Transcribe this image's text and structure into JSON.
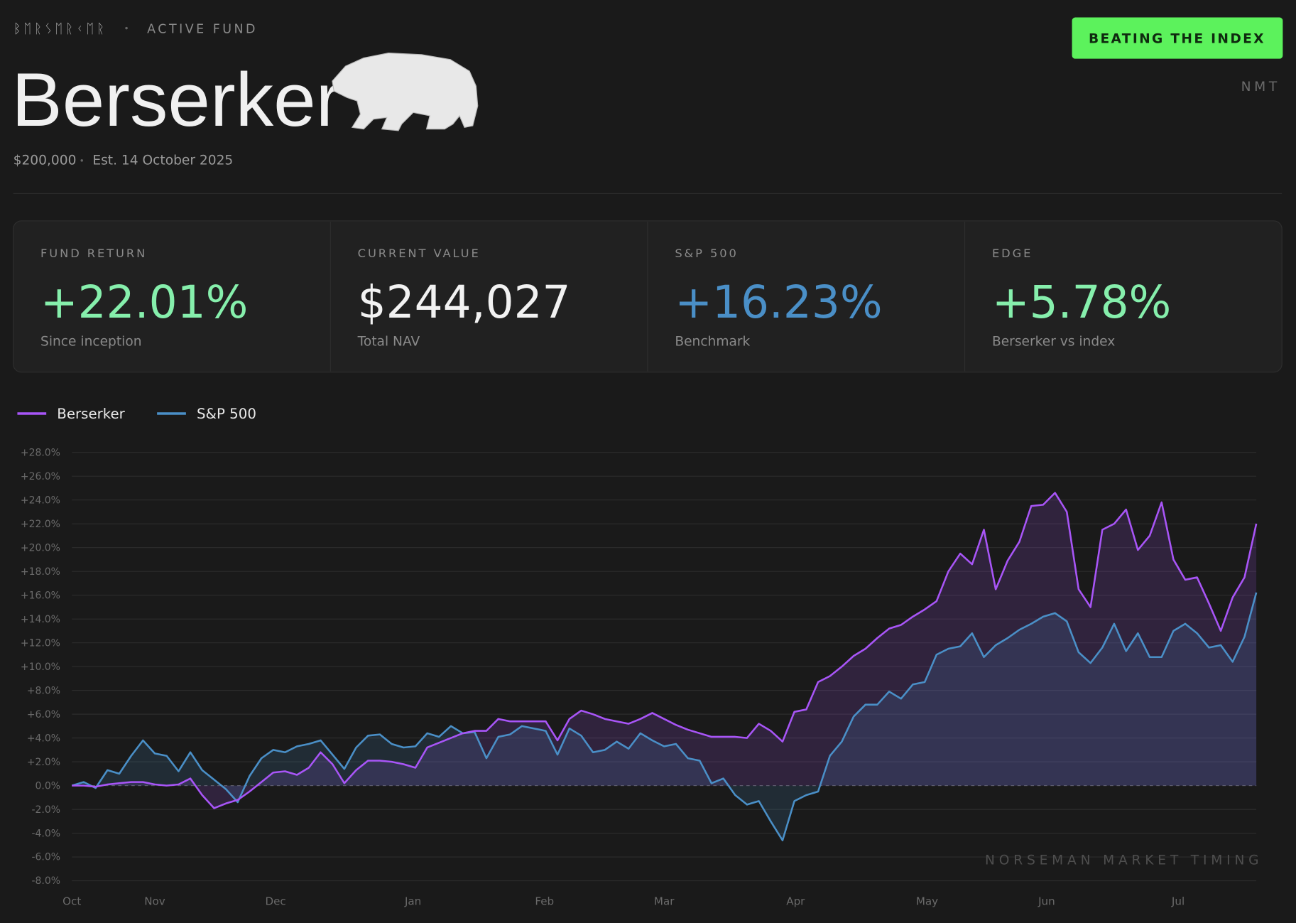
{
  "header": {
    "runes": "ᛒᛖᚱᛊᛖᚱᚲᛖᚱ",
    "tag": "ACTIVE FUND",
    "title": "Berserker",
    "capital": "$200,000",
    "established": "Est. 14 October 2025",
    "badge": "BEATING THE INDEX",
    "ticker": "NMT"
  },
  "stats": [
    {
      "label": "FUND RETURN",
      "value": "+22.01%",
      "note": "Since inception",
      "color": "#86efac"
    },
    {
      "label": "CURRENT VALUE",
      "value": "$244,027",
      "note": "Total NAV",
      "color": "#f2f2f2"
    },
    {
      "label": "S&P 500",
      "value": "+16.23%",
      "note": "Benchmark",
      "color": "#4a8fc7"
    },
    {
      "label": "EDGE",
      "value": "+5.78%",
      "note": "Berserker vs index",
      "color": "#86efac"
    }
  ],
  "chart_data": {
    "type": "line",
    "watermark": "NORSEMAN MARKET TIMING",
    "grid": true,
    "x": [
      0,
      1,
      2,
      3,
      4,
      5,
      6,
      7,
      8,
      9,
      10,
      11,
      12,
      13,
      14,
      15,
      16,
      17,
      18,
      19,
      20,
      21,
      22,
      23,
      24,
      25,
      26,
      27,
      28,
      29,
      30,
      31,
      32,
      33,
      34,
      35,
      36,
      37,
      38,
      39,
      40,
      41,
      42,
      43,
      44,
      45,
      46,
      47,
      48,
      49,
      50,
      51,
      52,
      53,
      54,
      55,
      56,
      57,
      58,
      59,
      60,
      61,
      62,
      63,
      64,
      65,
      66,
      67,
      68,
      69,
      70,
      71,
      72,
      73,
      74,
      75,
      76,
      77,
      78,
      79,
      80,
      81,
      82,
      83,
      84,
      85,
      86,
      87,
      88,
      89,
      90,
      91,
      92,
      93,
      94,
      95,
      96,
      97,
      98,
      99,
      100
    ],
    "xlim": [
      0,
      100
    ],
    "xticks": [
      {
        "value": 0,
        "label": "Oct"
      },
      {
        "value": 7,
        "label": "Nov"
      },
      {
        "value": 17.2,
        "label": "Dec"
      },
      {
        "value": 28.8,
        "label": "Jan"
      },
      {
        "value": 39.9,
        "label": "Feb"
      },
      {
        "value": 50,
        "label": "Mar"
      },
      {
        "value": 61.1,
        "label": "Apr"
      },
      {
        "value": 72.2,
        "label": "May"
      },
      {
        "value": 82.3,
        "label": "Jun"
      },
      {
        "value": 93.4,
        "label": "Jul"
      }
    ],
    "ylim": [
      -8,
      28
    ],
    "yticks": [
      {
        "value": -8,
        "label": "-8.0%"
      },
      {
        "value": -6,
        "label": "-6.0%"
      },
      {
        "value": -4,
        "label": "-4.0%"
      },
      {
        "value": -2,
        "label": "-2.0%"
      },
      {
        "value": 0,
        "label": "0.0%"
      },
      {
        "value": 2,
        "label": "+2.0%"
      },
      {
        "value": 4,
        "label": "+4.0%"
      },
      {
        "value": 6,
        "label": "+6.0%"
      },
      {
        "value": 8,
        "label": "+8.0%"
      },
      {
        "value": 10,
        "label": "+10.0%"
      },
      {
        "value": 12,
        "label": "+12.0%"
      },
      {
        "value": 14,
        "label": "+14.0%"
      },
      {
        "value": 16,
        "label": "+16.0%"
      },
      {
        "value": 18,
        "label": "+18.0%"
      },
      {
        "value": 20,
        "label": "+20.0%"
      },
      {
        "value": 22,
        "label": "+22.0%"
      },
      {
        "value": 24,
        "label": "+24.0%"
      },
      {
        "value": 26,
        "label": "+26.0%"
      },
      {
        "value": 28,
        "label": "+28.0%"
      }
    ],
    "series": [
      {
        "name": "Berserker",
        "color": "#a855f7",
        "values": [
          0,
          0,
          -0.1,
          0.1,
          0.2,
          0.3,
          0.3,
          0.1,
          0,
          0.1,
          0.6,
          -0.8,
          -1.9,
          -1.5,
          -1.2,
          -0.5,
          0.3,
          1.1,
          1.2,
          0.9,
          1.5,
          2.8,
          1.8,
          0.2,
          1.3,
          2.1,
          2.1,
          2.0,
          1.8,
          1.5,
          3.2,
          3.6,
          4.0,
          4.4,
          4.6,
          4.6,
          5.6,
          5.4,
          5.4,
          5.4,
          5.4,
          3.8,
          5.6,
          6.3,
          6.0,
          5.6,
          5.4,
          5.2,
          5.6,
          6.1,
          5.6,
          5.1,
          4.7,
          4.4,
          4.1,
          4.1,
          4.1,
          4.0,
          5.2,
          4.6,
          3.7,
          6.2,
          6.4,
          8.7,
          9.2,
          10.0,
          10.9,
          11.5,
          12.4,
          13.2,
          13.5,
          14.2,
          14.8,
          15.5,
          18.0,
          19.5,
          18.6,
          21.5,
          16.5,
          18.9,
          20.5,
          23.5,
          23.6,
          24.6,
          23.0,
          16.5,
          15.0,
          21.5,
          22.0,
          23.2,
          19.8,
          21.0,
          23.8,
          19.0,
          17.3,
          17.5,
          15.3,
          13.0,
          15.8,
          17.5,
          22.01
        ]
      },
      {
        "name": "S&P 500",
        "color": "#4a8fc7",
        "values": [
          0,
          0.3,
          -0.2,
          1.3,
          1.0,
          2.5,
          3.8,
          2.7,
          2.5,
          1.2,
          2.8,
          1.3,
          0.5,
          -0.3,
          -1.4,
          0.8,
          2.3,
          3.0,
          2.8,
          3.3,
          3.5,
          3.8,
          2.6,
          1.4,
          3.2,
          4.2,
          4.3,
          3.5,
          3.2,
          3.3,
          4.4,
          4.1,
          5.0,
          4.4,
          4.5,
          2.3,
          4.1,
          4.3,
          5.0,
          4.8,
          4.6,
          2.6,
          4.8,
          4.2,
          2.8,
          3.0,
          3.7,
          3.1,
          4.4,
          3.8,
          3.3,
          3.5,
          2.3,
          2.1,
          0.2,
          0.6,
          -0.8,
          -1.6,
          -1.3,
          -3.0,
          -4.6,
          -1.3,
          -0.8,
          -0.5,
          2.5,
          3.7,
          5.8,
          6.8,
          6.8,
          7.9,
          7.3,
          8.5,
          8.7,
          11.0,
          11.5,
          11.7,
          12.8,
          10.8,
          11.8,
          12.4,
          13.1,
          13.6,
          14.2,
          14.5,
          13.8,
          11.2,
          10.3,
          11.6,
          13.6,
          11.3,
          12.8,
          10.8,
          10.8,
          13.0,
          13.6,
          12.8,
          11.6,
          11.8,
          10.4,
          12.5,
          16.23
        ]
      }
    ]
  }
}
